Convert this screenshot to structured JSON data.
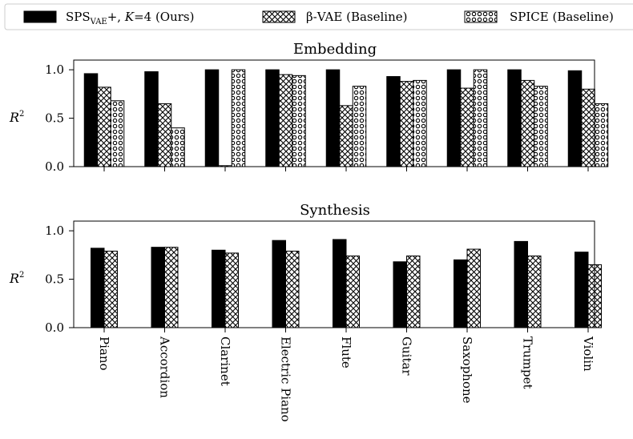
{
  "legend": [
    {
      "name": "SPS",
      "subscript": "VAE",
      "suffix": "+, ",
      "k_label": "K",
      "rest": "=4 (Ours)",
      "pattern": "solid"
    },
    {
      "name": "β-VAE (Baseline)",
      "pattern": "crosshatch"
    },
    {
      "name": "SPICE (Baseline)",
      "pattern": "circles"
    }
  ],
  "ylabel": {
    "base": "R",
    "sup": "2"
  },
  "chart_data": [
    {
      "type": "bar",
      "title": "Embedding",
      "categories": [
        "Piano",
        "Accordion",
        "Clarinet",
        "Electric Piano",
        "Flute",
        "Guitar",
        "Saxophone",
        "Trumpet",
        "Violin"
      ],
      "series": [
        {
          "name": "SPS_VAE+, K=4 (Ours)",
          "values": [
            0.96,
            0.98,
            1.0,
            1.0,
            1.0,
            0.93,
            1.0,
            1.0,
            0.99
          ]
        },
        {
          "name": "β-VAE (Baseline)",
          "values": [
            0.82,
            0.65,
            0.01,
            0.95,
            0.63,
            0.88,
            0.81,
            0.89,
            0.8
          ]
        },
        {
          "name": "SPICE (Baseline)",
          "values": [
            0.68,
            0.4,
            1.0,
            0.94,
            0.83,
            0.89,
            1.0,
            0.83,
            0.65
          ]
        }
      ],
      "ylim": [
        0,
        1.1
      ],
      "yticks": [
        "0.0",
        "0.5",
        "1.0"
      ],
      "grid": false
    },
    {
      "type": "bar",
      "title": "Synthesis",
      "categories": [
        "Piano",
        "Accordion",
        "Clarinet",
        "Electric Piano",
        "Flute",
        "Guitar",
        "Saxophone",
        "Trumpet",
        "Violin"
      ],
      "series": [
        {
          "name": "SPS_VAE+, K=4 (Ours)",
          "values": [
            0.82,
            0.83,
            0.8,
            0.9,
            0.91,
            0.68,
            0.7,
            0.89,
            0.78
          ]
        },
        {
          "name": "β-VAE (Baseline)",
          "values": [
            0.79,
            0.83,
            0.77,
            0.79,
            0.74,
            0.74,
            0.81,
            0.74,
            0.65
          ]
        }
      ],
      "ylim": [
        0,
        1.1
      ],
      "yticks": [
        "0.0",
        "0.5",
        "1.0"
      ],
      "grid": false
    }
  ]
}
